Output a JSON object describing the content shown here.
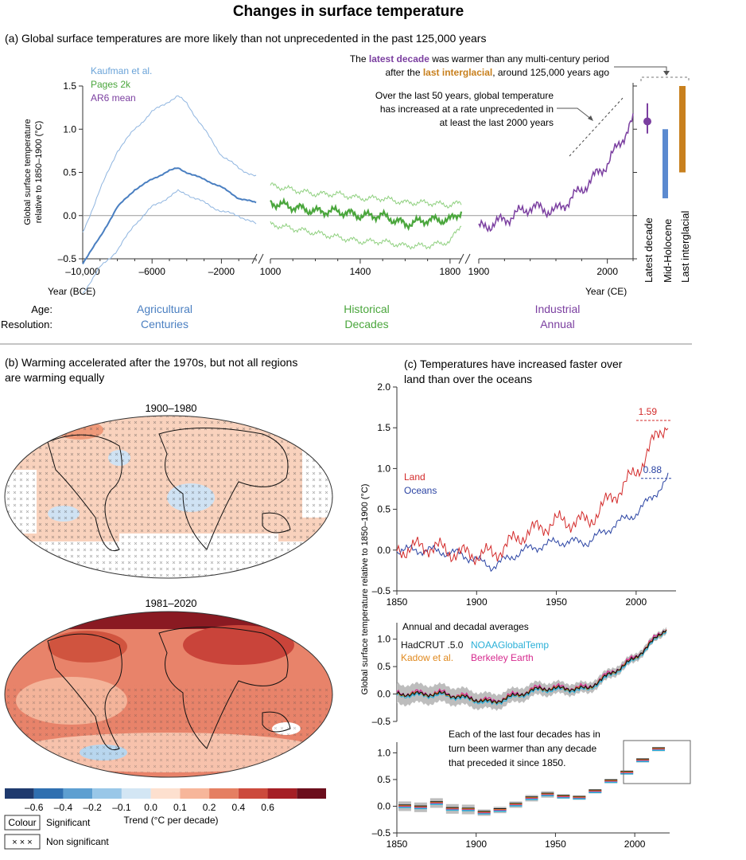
{
  "title": "Changes in surface temperature",
  "panel_a": {
    "heading": "(a) Global surface temperatures are more likely than not unprecedented in the past 125,000 years",
    "legend": {
      "kaufman": "Kaufman et al.",
      "pages2k": "Pages 2k",
      "ar6": "AR6 mean"
    },
    "colors": {
      "kaufman": "#4a7fc1",
      "pages2k": "#4aa63c",
      "ar6": "#7b3fa0",
      "interglacial": "#c8801e",
      "holocene": "#5b8ad0",
      "axis": "#333333",
      "zero": "#999999"
    },
    "ylabel_line1": "Global surface temperature",
    "ylabel_line2": "relative to 1850–1900 (°C)",
    "yticks": [
      "1.5",
      "1.0",
      "0.5",
      "0.0",
      "–0.5"
    ],
    "xticks_bce": [
      "–10,000",
      "–6000",
      "–2000"
    ],
    "xlabel_bce": "Year (BCE)",
    "xticks_hist": [
      "1000",
      "1400",
      "1800"
    ],
    "xticks_ind": [
      "1900",
      "2000"
    ],
    "xlabel_ce": "Year (CE)",
    "annot_decade_pre": "The ",
    "annot_decade_hl1": "latest decade",
    "annot_decade_mid": " was warmer than any multi-century period",
    "annot_decade_pre2": "after the ",
    "annot_decade_hl2": "last interglacial",
    "annot_decade_post": ", around 125,000 years ago",
    "annot_50_line1": "Over the last 50 years, global temperature",
    "annot_50_line2": "has increased at a rate unprecedented in",
    "annot_50_line3": "at least the last 2000 years",
    "bars": [
      {
        "label": "Latest decade",
        "low": 0.95,
        "high": 1.3,
        "point": 1.09
      },
      {
        "label": "Mid-Holocene",
        "low": 0.2,
        "high": 1.0
      },
      {
        "label": "Last interglacial",
        "low": 0.5,
        "high": 1.5
      }
    ],
    "age_label": "Age:",
    "resolution_label": "Resolution:",
    "ages": [
      {
        "age": "Agricultural",
        "resolution": "Centuries"
      },
      {
        "age": "Historical",
        "resolution": "Decades"
      },
      {
        "age": "Industrial",
        "resolution": "Annual"
      }
    ]
  },
  "panel_b": {
    "heading_line1": "(b) Warming accelerated after the 1970s, but not all regions",
    "heading_line2": "are warming equally",
    "map1_title": "1900–1980",
    "map2_title": "1981–2020",
    "colorbar_colors": [
      "#1f3a6e",
      "#2f6fb0",
      "#5d9fd1",
      "#99c7e8",
      "#d3e6f4",
      "#fde0cf",
      "#f7b69a",
      "#e57f62",
      "#cc4a3c",
      "#a51f25",
      "#6b0e1c"
    ],
    "colorbar_ticks": [
      "–0.6",
      "–0.4",
      "–0.2",
      "–0.1",
      "0.0",
      "0.1",
      "0.2",
      "0.4",
      "0.6"
    ],
    "colorbar_label": "Trend (°C per decade)",
    "legend_colour": "Colour",
    "legend_significant": "Significant",
    "legend_xxx": "× × ×",
    "legend_nonsignificant": "Non significant"
  },
  "panel_c": {
    "heading_line1": "(c) Temperatures have increased faster over",
    "heading_line2": "land than over the oceans",
    "ylabel": "Global surface temperature relative to 1850–1900 (°C)",
    "land_label": "Land",
    "ocean_label": "Oceans",
    "land_value": "1.59",
    "ocean_value": "0.88",
    "colors": {
      "land": "#d32a2a",
      "ocean": "#2a43a3",
      "hadcrut": "#111111",
      "noaa": "#2ab0d8",
      "kadow": "#e0891e",
      "berkeley": "#d62a8e",
      "band": "#bdbdbd"
    },
    "top_yticks": [
      "2.0",
      "1.5",
      "1.0",
      "0.5",
      "0.0",
      "–0.5"
    ],
    "top_xticks": [
      "1850",
      "1900",
      "1950",
      "2000"
    ],
    "mid_title": "Annual and decadal averages",
    "mid_yticks": [
      "1.0",
      "0.5",
      "0.0",
      "–0.5"
    ],
    "ds_hadcrut": "HadCRUT .5.0",
    "ds_noaa": "NOAAGlobalTemp",
    "ds_kadow": "Kadow et al.",
    "ds_berkeley": "Berkeley Earth",
    "bot_yticks": [
      "1.0",
      "0.5",
      "0.0",
      "–0.5"
    ],
    "bot_xticks": [
      "1850",
      "1900",
      "1950",
      "2000"
    ],
    "bot_annot_line1": "Each of the last four decades has in",
    "bot_annot_line2": "turn been warmer than any decade",
    "bot_annot_line3": "that preceded it since 1850."
  },
  "chart_data": [
    {
      "type": "line",
      "title": "(a) Global surface temperatures are more likely than not unprecedented in the past 125,000 years",
      "xlabel": "Year (BCE) / Year (CE)",
      "ylabel": "Global surface temperature relative to 1850–1900 (°C)",
      "ylim": [
        -0.5,
        1.5
      ],
      "series": [
        {
          "name": "Kaufman et al.",
          "x": [
            -10000,
            -9000,
            -8000,
            -7000,
            -6000,
            -5000,
            -4500,
            -4000,
            -3000,
            -2000,
            -1000,
            0
          ],
          "values": [
            -0.55,
            -0.25,
            0.1,
            0.3,
            0.42,
            0.52,
            0.55,
            0.5,
            0.42,
            0.33,
            0.2,
            0.15
          ],
          "upper": [
            -0.2,
            0.3,
            0.75,
            1.0,
            1.2,
            1.33,
            1.38,
            1.3,
            1.0,
            0.7,
            0.55,
            0.45
          ],
          "lower": [
            -0.9,
            -0.6,
            -0.4,
            -0.1,
            0.1,
            0.22,
            0.28,
            0.25,
            0.15,
            0.05,
            0.0,
            -0.1
          ]
        },
        {
          "name": "Pages 2k",
          "x": [
            1000,
            1100,
            1200,
            1300,
            1400,
            1500,
            1600,
            1700,
            1800,
            1850
          ],
          "values": [
            0.15,
            0.1,
            0.05,
            0.05,
            0.0,
            0.0,
            -0.1,
            -0.05,
            -0.05,
            0.05
          ],
          "upper": [
            0.35,
            0.3,
            0.25,
            0.25,
            0.2,
            0.2,
            0.15,
            0.15,
            0.12,
            0.15
          ],
          "lower": [
            -0.1,
            -0.15,
            -0.2,
            -0.25,
            -0.3,
            -0.3,
            -0.35,
            -0.35,
            -0.3,
            -0.1
          ]
        },
        {
          "name": "AR6 mean",
          "x": [
            1850,
            1880,
            1900,
            1920,
            1940,
            1960,
            1980,
            2000,
            2010,
            2020
          ],
          "values": [
            0.0,
            -0.1,
            -0.15,
            -0.05,
            0.1,
            0.05,
            0.3,
            0.6,
            0.85,
            1.1
          ]
        }
      ],
      "bars": [
        {
          "name": "Latest decade",
          "low": 0.95,
          "high": 1.3,
          "value": 1.09
        },
        {
          "name": "Mid-Holocene",
          "low": 0.2,
          "high": 1.0
        },
        {
          "name": "Last interglacial",
          "low": 0.5,
          "high": 1.5
        }
      ]
    },
    {
      "type": "line",
      "title": "(c) Temperatures have increased faster over land than over the oceans",
      "ylabel": "Global surface temperature relative to 1850–1900 (°C)",
      "ylim": [
        -0.5,
        2.0
      ],
      "x": [
        1850,
        1870,
        1890,
        1910,
        1930,
        1950,
        1970,
        1990,
        2000,
        2010,
        2020
      ],
      "series": [
        {
          "name": "Land",
          "values": [
            0.0,
            0.05,
            -0.05,
            -0.05,
            0.2,
            0.35,
            0.35,
            0.75,
            0.95,
            1.3,
            1.59
          ]
        },
        {
          "name": "Oceans",
          "values": [
            0.0,
            0.0,
            -0.05,
            -0.2,
            0.0,
            0.1,
            0.1,
            0.35,
            0.45,
            0.65,
            0.88
          ]
        }
      ]
    },
    {
      "type": "line",
      "title": "Annual and decadal averages",
      "ylim": [
        -0.5,
        1.3
      ],
      "x": [
        1850,
        1880,
        1910,
        1940,
        1970,
        2000,
        2020
      ],
      "series": [
        {
          "name": "HadCRUT .5.0",
          "values": [
            0.0,
            0.0,
            -0.15,
            0.1,
            0.1,
            0.65,
            1.2
          ]
        }
      ]
    },
    {
      "type": "bar",
      "title": "Each of the last four decades has in turn been warmer than any decade that preceded it since 1850.",
      "categories": [
        "1850",
        "1860",
        "1870",
        "1880",
        "1890",
        "1900",
        "1910",
        "1920",
        "1930",
        "1940",
        "1950",
        "1960",
        "1970",
        "1980",
        "1990",
        "2000",
        "2010"
      ],
      "values": [
        0.0,
        -0.02,
        0.06,
        -0.05,
        -0.06,
        -0.12,
        -0.07,
        0.03,
        0.15,
        0.22,
        0.18,
        0.16,
        0.28,
        0.47,
        0.63,
        0.86,
        1.07
      ],
      "ylim": [
        -0.5,
        1.2
      ]
    }
  ]
}
